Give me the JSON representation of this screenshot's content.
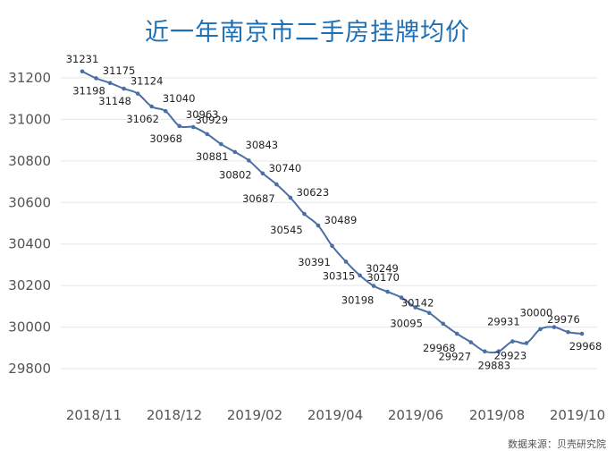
{
  "page": {
    "title": "近一年南京市二手房挂牌均价",
    "source": "数据来源：贝壳研究院"
  },
  "colors": {
    "title": "#1f6fb3",
    "line": "#4a6fa5",
    "grid": "#e6e6e6",
    "text": "#333333"
  },
  "chart_data": {
    "type": "line",
    "title": "近一年南京市二手房挂牌均价",
    "xlabel": "",
    "ylabel": "",
    "ylim": [
      29700,
      31300
    ],
    "y_ticks": [
      29800,
      30000,
      30200,
      30400,
      30600,
      30800,
      31000,
      31200
    ],
    "x_ticks": [
      "2018/11",
      "2018/12",
      "2019/02",
      "2019/04",
      "2019/06",
      "2019/08",
      "2019/10"
    ],
    "grid": true,
    "legend": "none",
    "series": [
      {
        "values": [
          31231,
          31198,
          31175,
          31148,
          31124,
          31062,
          31040,
          30968,
          30963,
          30929,
          30881,
          30843,
          30802,
          30740,
          30687,
          30623,
          30545,
          30489,
          30391,
          30315,
          30249,
          30198,
          30170,
          30142,
          30095,
          30068,
          30016,
          29968,
          29927,
          29883,
          29883,
          29931,
          29923,
          29990,
          30000,
          29976,
          29968
        ],
        "labels": [
          "31231",
          "31198",
          "31175",
          "31148",
          "31124",
          "31062",
          "31040",
          "30968",
          "30963",
          "30929",
          "30881",
          "30843",
          "30802",
          "30740",
          "30687",
          "30623",
          "30545",
          "30489",
          "30391",
          "30315",
          "30249",
          "30198",
          "30170",
          "30142",
          "30095",
          "",
          "",
          "29968",
          "29927",
          "",
          "29883",
          "29931",
          "29923",
          "",
          "30000",
          "29976",
          "29968"
        ]
      }
    ]
  }
}
